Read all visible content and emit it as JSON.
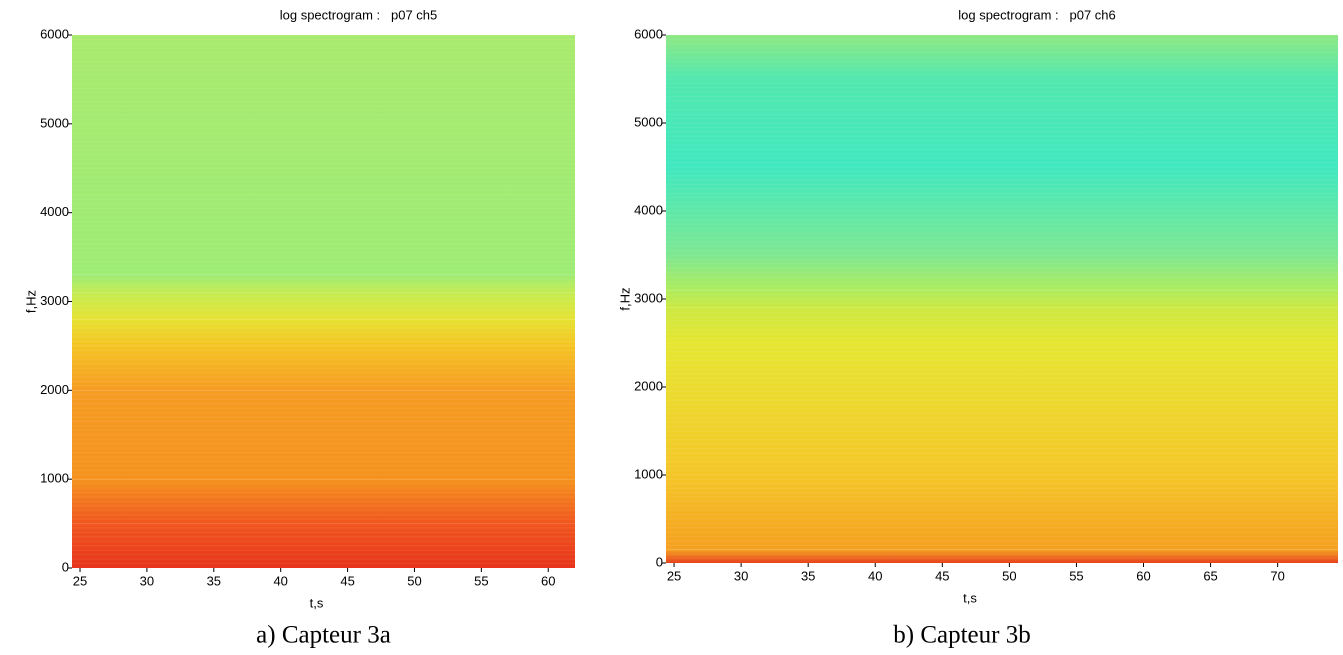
{
  "chart_data": [
    {
      "type": "spectrogram",
      "title": "log spectrogram :   p07 ch5",
      "xlabel": "t,s",
      "ylabel": "f,Hz",
      "caption": "a) Capteur 3a",
      "xlim": [
        24.4,
        62
      ],
      "ylim": [
        0,
        6000
      ],
      "xticks": [
        25,
        30,
        35,
        40,
        45,
        50,
        55,
        60
      ],
      "yticks": [
        0,
        1000,
        2000,
        3000,
        4000,
        5000,
        6000
      ],
      "color_stops": [
        {
          "f": 0,
          "color": "#e8341c"
        },
        {
          "f": 500,
          "color": "#f0561e"
        },
        {
          "f": 1000,
          "color": "#f5921e"
        },
        {
          "f": 2000,
          "color": "#f59c22"
        },
        {
          "f": 2500,
          "color": "#f5c424"
        },
        {
          "f": 2800,
          "color": "#e6e232"
        },
        {
          "f": 3100,
          "color": "#c4ec52"
        },
        {
          "f": 3300,
          "color": "#9eec74"
        },
        {
          "f": 6000,
          "color": "#a8ea6e"
        }
      ]
    },
    {
      "type": "spectrogram",
      "title": "log spectrogram :   p07 ch6",
      "xlabel": "t,s",
      "ylabel": "f,Hz",
      "caption": "b) Capteur 3b",
      "xlim": [
        24.4,
        74.5
      ],
      "ylim": [
        0,
        6000
      ],
      "xticks": [
        25,
        30,
        35,
        40,
        45,
        50,
        55,
        60,
        65,
        70
      ],
      "yticks": [
        0,
        1000,
        2000,
        3000,
        4000,
        5000,
        6000
      ],
      "color_stops": [
        {
          "f": 0,
          "color": "#e8401e"
        },
        {
          "f": 150,
          "color": "#f5a020"
        },
        {
          "f": 1000,
          "color": "#f5c628"
        },
        {
          "f": 2500,
          "color": "#e6e632"
        },
        {
          "f": 2900,
          "color": "#cce842"
        },
        {
          "f": 3100,
          "color": "#aeec5c"
        },
        {
          "f": 3500,
          "color": "#7ee892"
        },
        {
          "f": 4500,
          "color": "#40e8c0"
        },
        {
          "f": 5500,
          "color": "#52e8ae"
        },
        {
          "f": 6000,
          "color": "#8ee882"
        }
      ]
    }
  ]
}
